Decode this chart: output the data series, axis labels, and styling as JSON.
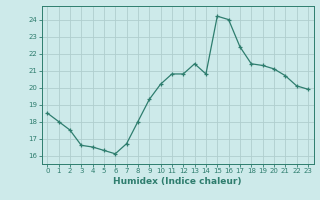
{
  "x": [
    0,
    1,
    2,
    3,
    4,
    5,
    6,
    7,
    8,
    9,
    10,
    11,
    12,
    13,
    14,
    15,
    16,
    17,
    18,
    19,
    20,
    21,
    22,
    23
  ],
  "y": [
    18.5,
    18.0,
    17.5,
    16.6,
    16.5,
    16.3,
    16.1,
    16.7,
    18.0,
    19.3,
    20.2,
    20.8,
    20.8,
    21.4,
    20.8,
    24.2,
    24.0,
    22.4,
    21.4,
    21.3,
    21.1,
    20.7,
    20.1,
    19.9
  ],
  "line_color": "#2e7d6e",
  "marker": "+",
  "marker_size": 3.5,
  "bg_color": "#cdeaea",
  "grid_color": "#b0cece",
  "ylabel_ticks": [
    16,
    17,
    18,
    19,
    20,
    21,
    22,
    23,
    24
  ],
  "xlabel": "Humidex (Indice chaleur)",
  "ylim": [
    15.5,
    24.8
  ],
  "xlim": [
    -0.5,
    23.5
  ],
  "tick_color": "#2e7d6e",
  "axis_color": "#2e7d6e",
  "tick_fontsize": 5.0,
  "xlabel_fontsize": 6.5
}
